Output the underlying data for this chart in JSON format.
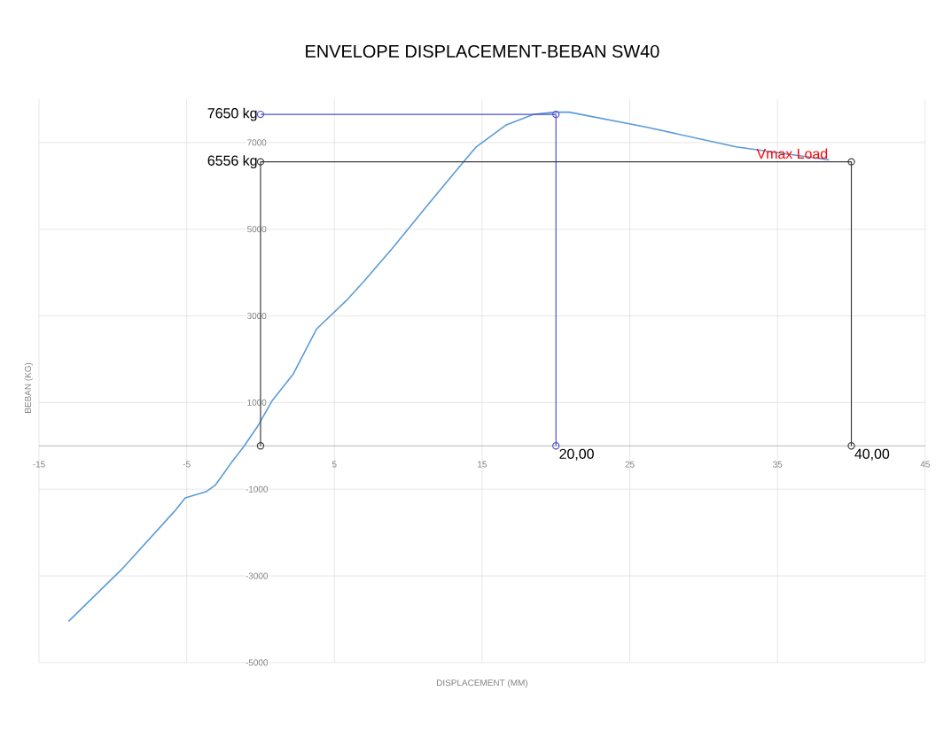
{
  "chart_data": {
    "type": "line",
    "title": "ENVELOPE DISPLACEMENT-BEBAN SW40",
    "xlabel": "DISPLACEMENT (MM)",
    "ylabel": "BEBAN (KG)",
    "xlim": [
      -15,
      45
    ],
    "xticks": [
      -15,
      -5,
      5,
      15,
      25,
      35,
      45
    ],
    "ylim": [
      -5000,
      8000
    ],
    "yticks": [
      -5000,
      -3000,
      -1000,
      1000,
      3000,
      5000,
      7000
    ],
    "grid": true,
    "series": [
      {
        "color": "#5b9bd5",
        "marker": "none",
        "x": [
          -13,
          -9.4,
          -5.8,
          -5.1,
          -3.65,
          -3.05,
          -2,
          -1.1,
          -0.2,
          0.8,
          2.2,
          3.8,
          5.8,
          7,
          8.9,
          11.3,
          13,
          14.6,
          16.6,
          18.5,
          19.9,
          20.9,
          26.2,
          32.2,
          38.5
        ],
        "values": [
          -4050,
          -2850,
          -1500,
          -1200,
          -1050,
          -900,
          -400,
          0,
          450,
          1050,
          1650,
          2700,
          3350,
          3800,
          4550,
          5550,
          6250,
          6900,
          7400,
          7650,
          7700,
          7700,
          7350,
          6900,
          6600
        ]
      },
      {
        "color": "#5050d0",
        "marker": "circle",
        "x": [
          0,
          20,
          20
        ],
        "values": [
          7650,
          7650,
          0
        ]
      },
      {
        "color": "#404040",
        "marker": "circle",
        "x": [
          0,
          0,
          40,
          40
        ],
        "values": [
          0,
          6556,
          6556,
          0
        ]
      }
    ],
    "annotations": [
      {
        "text": "7650 kg",
        "x": 0,
        "y": 7650
      },
      {
        "text": "6556 kg",
        "x": 0,
        "y": 6556
      },
      {
        "text": "20,00",
        "x": 20,
        "y": 0
      },
      {
        "text": "40,00",
        "x": 40,
        "y": 0
      },
      {
        "text": "Vmax Load",
        "x": 36,
        "y": 6556
      }
    ]
  }
}
